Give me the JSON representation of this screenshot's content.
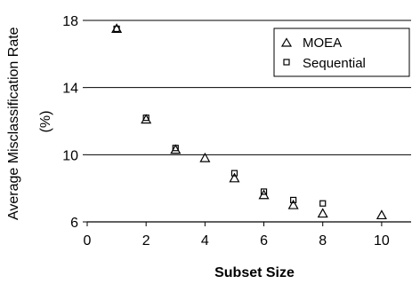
{
  "chart_data": {
    "type": "scatter",
    "xlabel": "Subset Size",
    "ylabel_lines": [
      "Average Misclassification Rate",
      "(%)"
    ],
    "xlim": [
      0,
      11
    ],
    "ylim": [
      6,
      18
    ],
    "xticks": [
      0,
      2,
      4,
      6,
      8,
      10
    ],
    "yticks": [
      6,
      10,
      14,
      18
    ],
    "grid": "horizontal",
    "legend_position": "top-right",
    "series": [
      {
        "name": "MOEA",
        "marker": "triangle",
        "points": [
          {
            "x": 1,
            "y": 17.5
          },
          {
            "x": 2,
            "y": 12.1
          },
          {
            "x": 3,
            "y": 10.3
          },
          {
            "x": 4,
            "y": 9.8
          },
          {
            "x": 5,
            "y": 8.6
          },
          {
            "x": 6,
            "y": 7.6
          },
          {
            "x": 7,
            "y": 7.0
          },
          {
            "x": 8,
            "y": 6.5
          },
          {
            "x": 10,
            "y": 6.4
          }
        ]
      },
      {
        "name": "Sequential",
        "marker": "square",
        "points": [
          {
            "x": 1,
            "y": 17.5
          },
          {
            "x": 2,
            "y": 12.2
          },
          {
            "x": 3,
            "y": 10.4
          },
          {
            "x": 5,
            "y": 8.9
          },
          {
            "x": 6,
            "y": 7.8
          },
          {
            "x": 7,
            "y": 7.3
          },
          {
            "x": 8,
            "y": 7.1
          }
        ]
      }
    ]
  }
}
